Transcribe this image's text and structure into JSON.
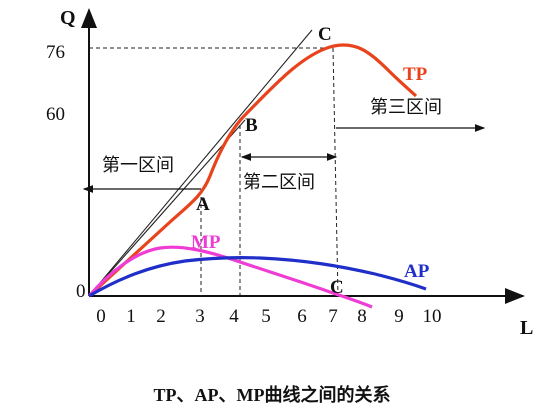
{
  "caption": "TP、AP、MP曲线之间的关系",
  "axes": {
    "y_label": "Q",
    "x_label": "L",
    "origin_label": "0",
    "x_ticks": [
      "0",
      "1",
      "2",
      "3",
      "4",
      "5",
      "6",
      "7",
      "8",
      "9",
      "10"
    ],
    "y_ticks": [
      "76",
      "60"
    ]
  },
  "curves": {
    "tp_label": "TP",
    "ap_label": "AP",
    "mp_label": "MP"
  },
  "points": {
    "a": "A",
    "b": "B",
    "c_top": "C",
    "c_bottom": "C"
  },
  "regions": {
    "first": "第一区间",
    "second": "第二区间",
    "third": "第三区间"
  },
  "colors": {
    "tp": "#e8431c",
    "ap": "#1f2fc8",
    "mp": "#ee3cd4",
    "axis": "#111111",
    "guide": "#222222"
  }
}
